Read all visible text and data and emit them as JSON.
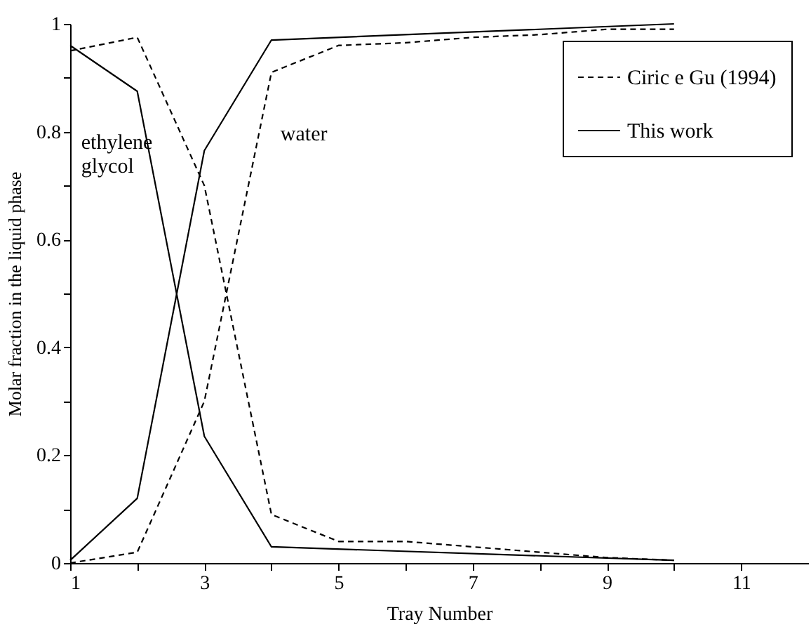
{
  "chart_data": {
    "type": "line",
    "xlabel": "Tray Number",
    "ylabel": "Molar fraction in the liquid phase",
    "xlim": [
      1,
      12
    ],
    "xticks": [
      1,
      {
        "value": 2,
        "label": null
      },
      3,
      {
        "value": 4,
        "label": null
      },
      5,
      {
        "value": 6,
        "label": null
      },
      7,
      {
        "value": 8,
        "label": null
      },
      9,
      {
        "value": 10,
        "label": null
      },
      11
    ],
    "ylim": [
      0,
      1
    ],
    "yticks": [
      0,
      {
        "value": 0.1,
        "label": null
      },
      0.2,
      {
        "value": 0.3,
        "label": null
      },
      0.4,
      {
        "value": 0.5,
        "label": null
      },
      0.6,
      {
        "value": 0.7,
        "label": null
      },
      0.8,
      {
        "value": 0.9,
        "label": null
      },
      1
    ],
    "legend": "top right",
    "grid": false,
    "marker": "none",
    "series": [
      {
        "name": "Ciric e Gu (1994)",
        "color": "#000000",
        "line_style": "dashed",
        "x": [
          1,
          2,
          3,
          4,
          5,
          6,
          7,
          8,
          9,
          10
        ],
        "values": [
          0.95,
          0.975,
          0.7,
          0.09,
          0.04,
          0.04,
          0.03,
          0.02,
          0.01,
          0.005
        ]
      },
      {
        "color": "#000000",
        "line_style": "dashed",
        "x": [
          1,
          2,
          3,
          4,
          5,
          6,
          7,
          8,
          9,
          10
        ],
        "values": [
          0,
          0.02,
          0.3,
          0.91,
          0.96,
          0.965,
          0.975,
          0.98,
          0.99,
          0.99
        ]
      },
      {
        "name": "This work",
        "color": "#000000",
        "line_style": "solid",
        "x": [
          1,
          2,
          3,
          4,
          10
        ],
        "values": [
          0.96,
          0.875,
          0.235,
          0.03,
          0.005
        ]
      },
      {
        "color": "#000000",
        "line_style": "solid",
        "x": [
          1,
          2,
          3,
          4,
          10
        ],
        "values": [
          0.005,
          0.12,
          0.765,
          0.97,
          1.0
        ]
      }
    ],
    "annotations": [
      "ethylene glycol",
      "water"
    ]
  }
}
